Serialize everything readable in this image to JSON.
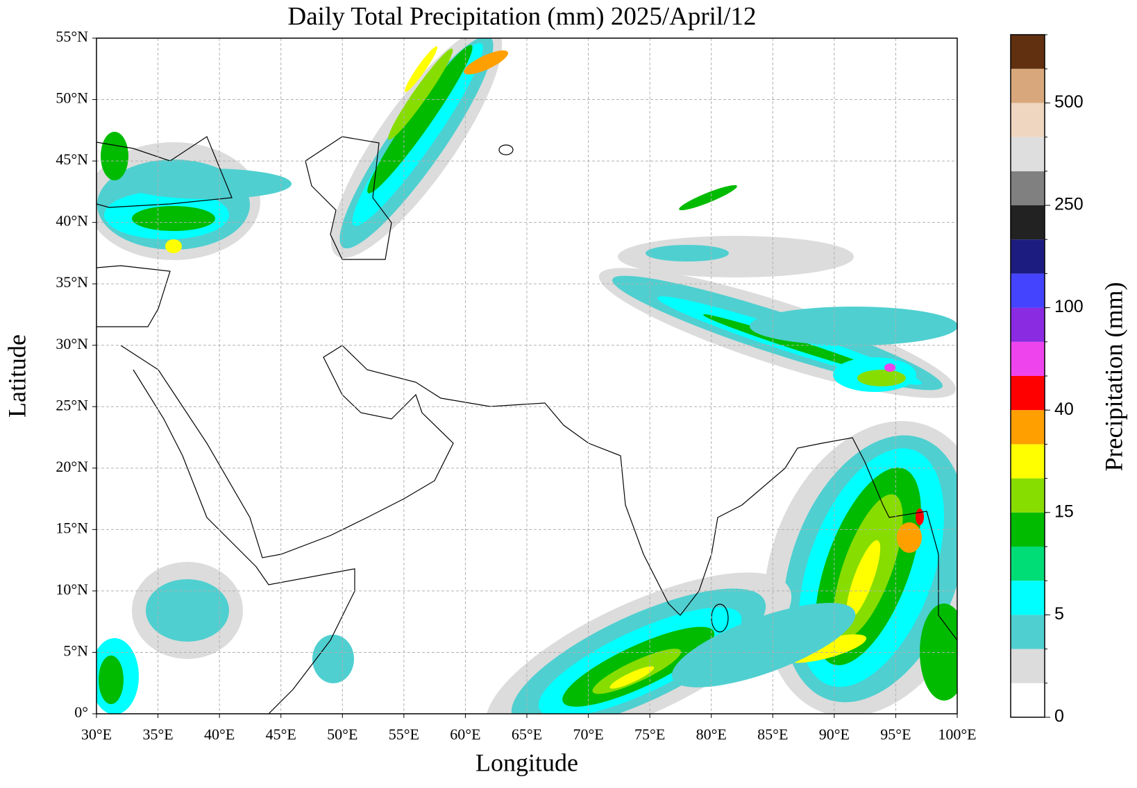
{
  "chart_data": {
    "type": "map",
    "title": "Daily Total Precipitation (mm)  2025/April/12",
    "x_label": "Longitude",
    "y_label": "Latitude",
    "xlim": [
      30,
      100
    ],
    "ylim": [
      0,
      55
    ],
    "grid": true,
    "xticks": [
      {
        "value": 30,
        "label": "30°E"
      },
      {
        "value": 35,
        "label": "35°E"
      },
      {
        "value": 40,
        "label": "40°E"
      },
      {
        "value": 45,
        "label": "45°E"
      },
      {
        "value": 50,
        "label": "50°E"
      },
      {
        "value": 55,
        "label": "55°E"
      },
      {
        "value": 60,
        "label": "60°E"
      },
      {
        "value": 65,
        "label": "65°E"
      },
      {
        "value": 70,
        "label": "70°E"
      },
      {
        "value": 75,
        "label": "75°E"
      },
      {
        "value": 80,
        "label": "80°E"
      },
      {
        "value": 85,
        "label": "85°E"
      },
      {
        "value": 90,
        "label": "90°E"
      },
      {
        "value": 95,
        "label": "95°E"
      },
      {
        "value": 100,
        "label": "100°E"
      }
    ],
    "yticks": [
      {
        "value": 0,
        "label": "0°"
      },
      {
        "value": 5,
        "label": "5°N"
      },
      {
        "value": 10,
        "label": "10°N"
      },
      {
        "value": 15,
        "label": "15°N"
      },
      {
        "value": 20,
        "label": "20°N"
      },
      {
        "value": 25,
        "label": "25°N"
      },
      {
        "value": 30,
        "label": "30°N"
      },
      {
        "value": 35,
        "label": "35°N"
      },
      {
        "value": 40,
        "label": "40°N"
      },
      {
        "value": 45,
        "label": "45°N"
      },
      {
        "value": 50,
        "label": "50°N"
      },
      {
        "value": 55,
        "label": "55°N"
      }
    ],
    "colorbar": {
      "label": "Precipitation (mm)",
      "colors": [
        "#ffffff",
        "#dcdcdc",
        "#4fcfd0",
        "#00ffff",
        "#00dd77",
        "#00bb00",
        "#88dd00",
        "#ffff00",
        "#ffa000",
        "#ff0000",
        "#ee44ee",
        "#8a2be2",
        "#4444ff",
        "#1c1c80",
        "#222222",
        "#808080",
        "#dedede",
        "#efd6c0",
        "#d8a87c",
        "#603010"
      ],
      "ticks": [
        0,
        5,
        15,
        40,
        100,
        250,
        500
      ]
    }
  }
}
